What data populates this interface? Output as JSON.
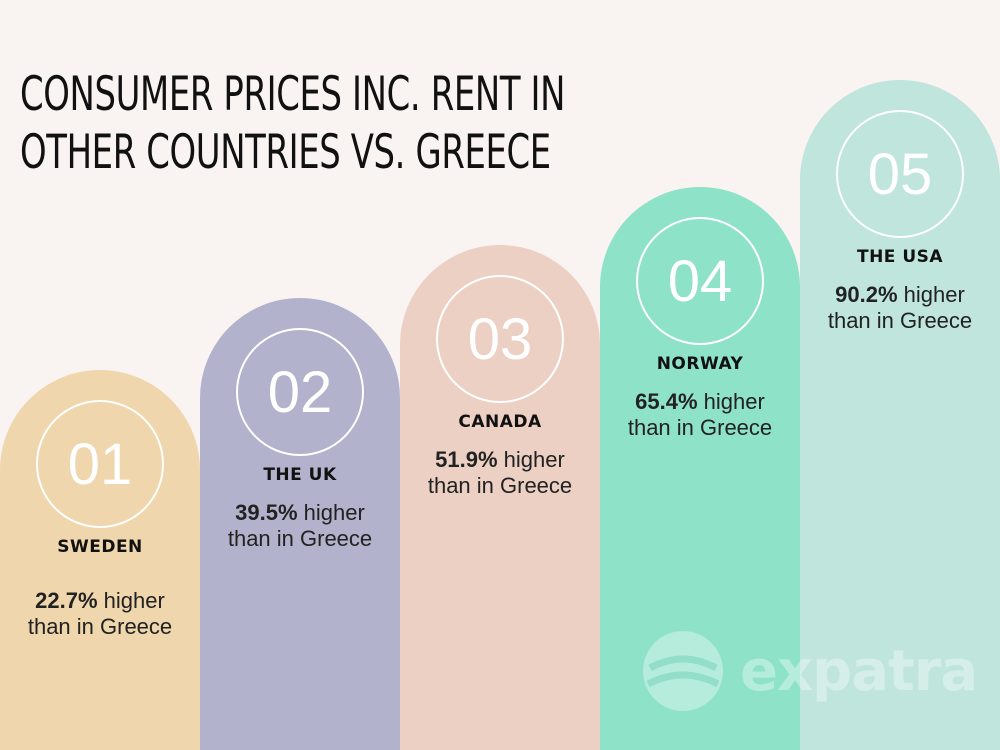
{
  "chart_data": {
    "type": "bar",
    "title": "CONSUMER PRICES INC. RENT IN OTHER COUNTRIES VS. GREECE",
    "categories": [
      "SWEDEN",
      "THE UK",
      "CANADA",
      "NORWAY",
      "THE USA"
    ],
    "values": [
      22.7,
      39.5,
      51.9,
      65.4,
      90.2
    ],
    "unit": "% higher than in Greece",
    "ranks": [
      "01",
      "02",
      "03",
      "04",
      "05"
    ],
    "colors": [
      "#efd6ad",
      "#b2b2cd",
      "#ecd0c4",
      "#8ee2c8",
      "#bfe5dc"
    ]
  },
  "title_lines": [
    "CONSUMER PRICES INC. RENT IN",
    "OTHER COUNTRIES VS. GREECE"
  ],
  "items": [
    {
      "rank": "01",
      "country": "SWEDEN",
      "value": "22.7%",
      "suffix": " higher",
      "line2": "than in Greece"
    },
    {
      "rank": "02",
      "country": "THE UK",
      "value": "39.5%",
      "suffix": " higher",
      "line2": "than in Greece"
    },
    {
      "rank": "03",
      "country": "CANADA",
      "value": "51.9%",
      "suffix": " higher",
      "line2": "than in Greece"
    },
    {
      "rank": "04",
      "country": "NORWAY",
      "value": "65.4%",
      "suffix": " higher",
      "line2": "than in Greece"
    },
    {
      "rank": "05",
      "country": "THE USA",
      "value": "90.2%",
      "suffix": " higher",
      "line2": "than in Greece"
    }
  ],
  "watermark": {
    "text": "expatra",
    "icon": "globe-icon"
  }
}
